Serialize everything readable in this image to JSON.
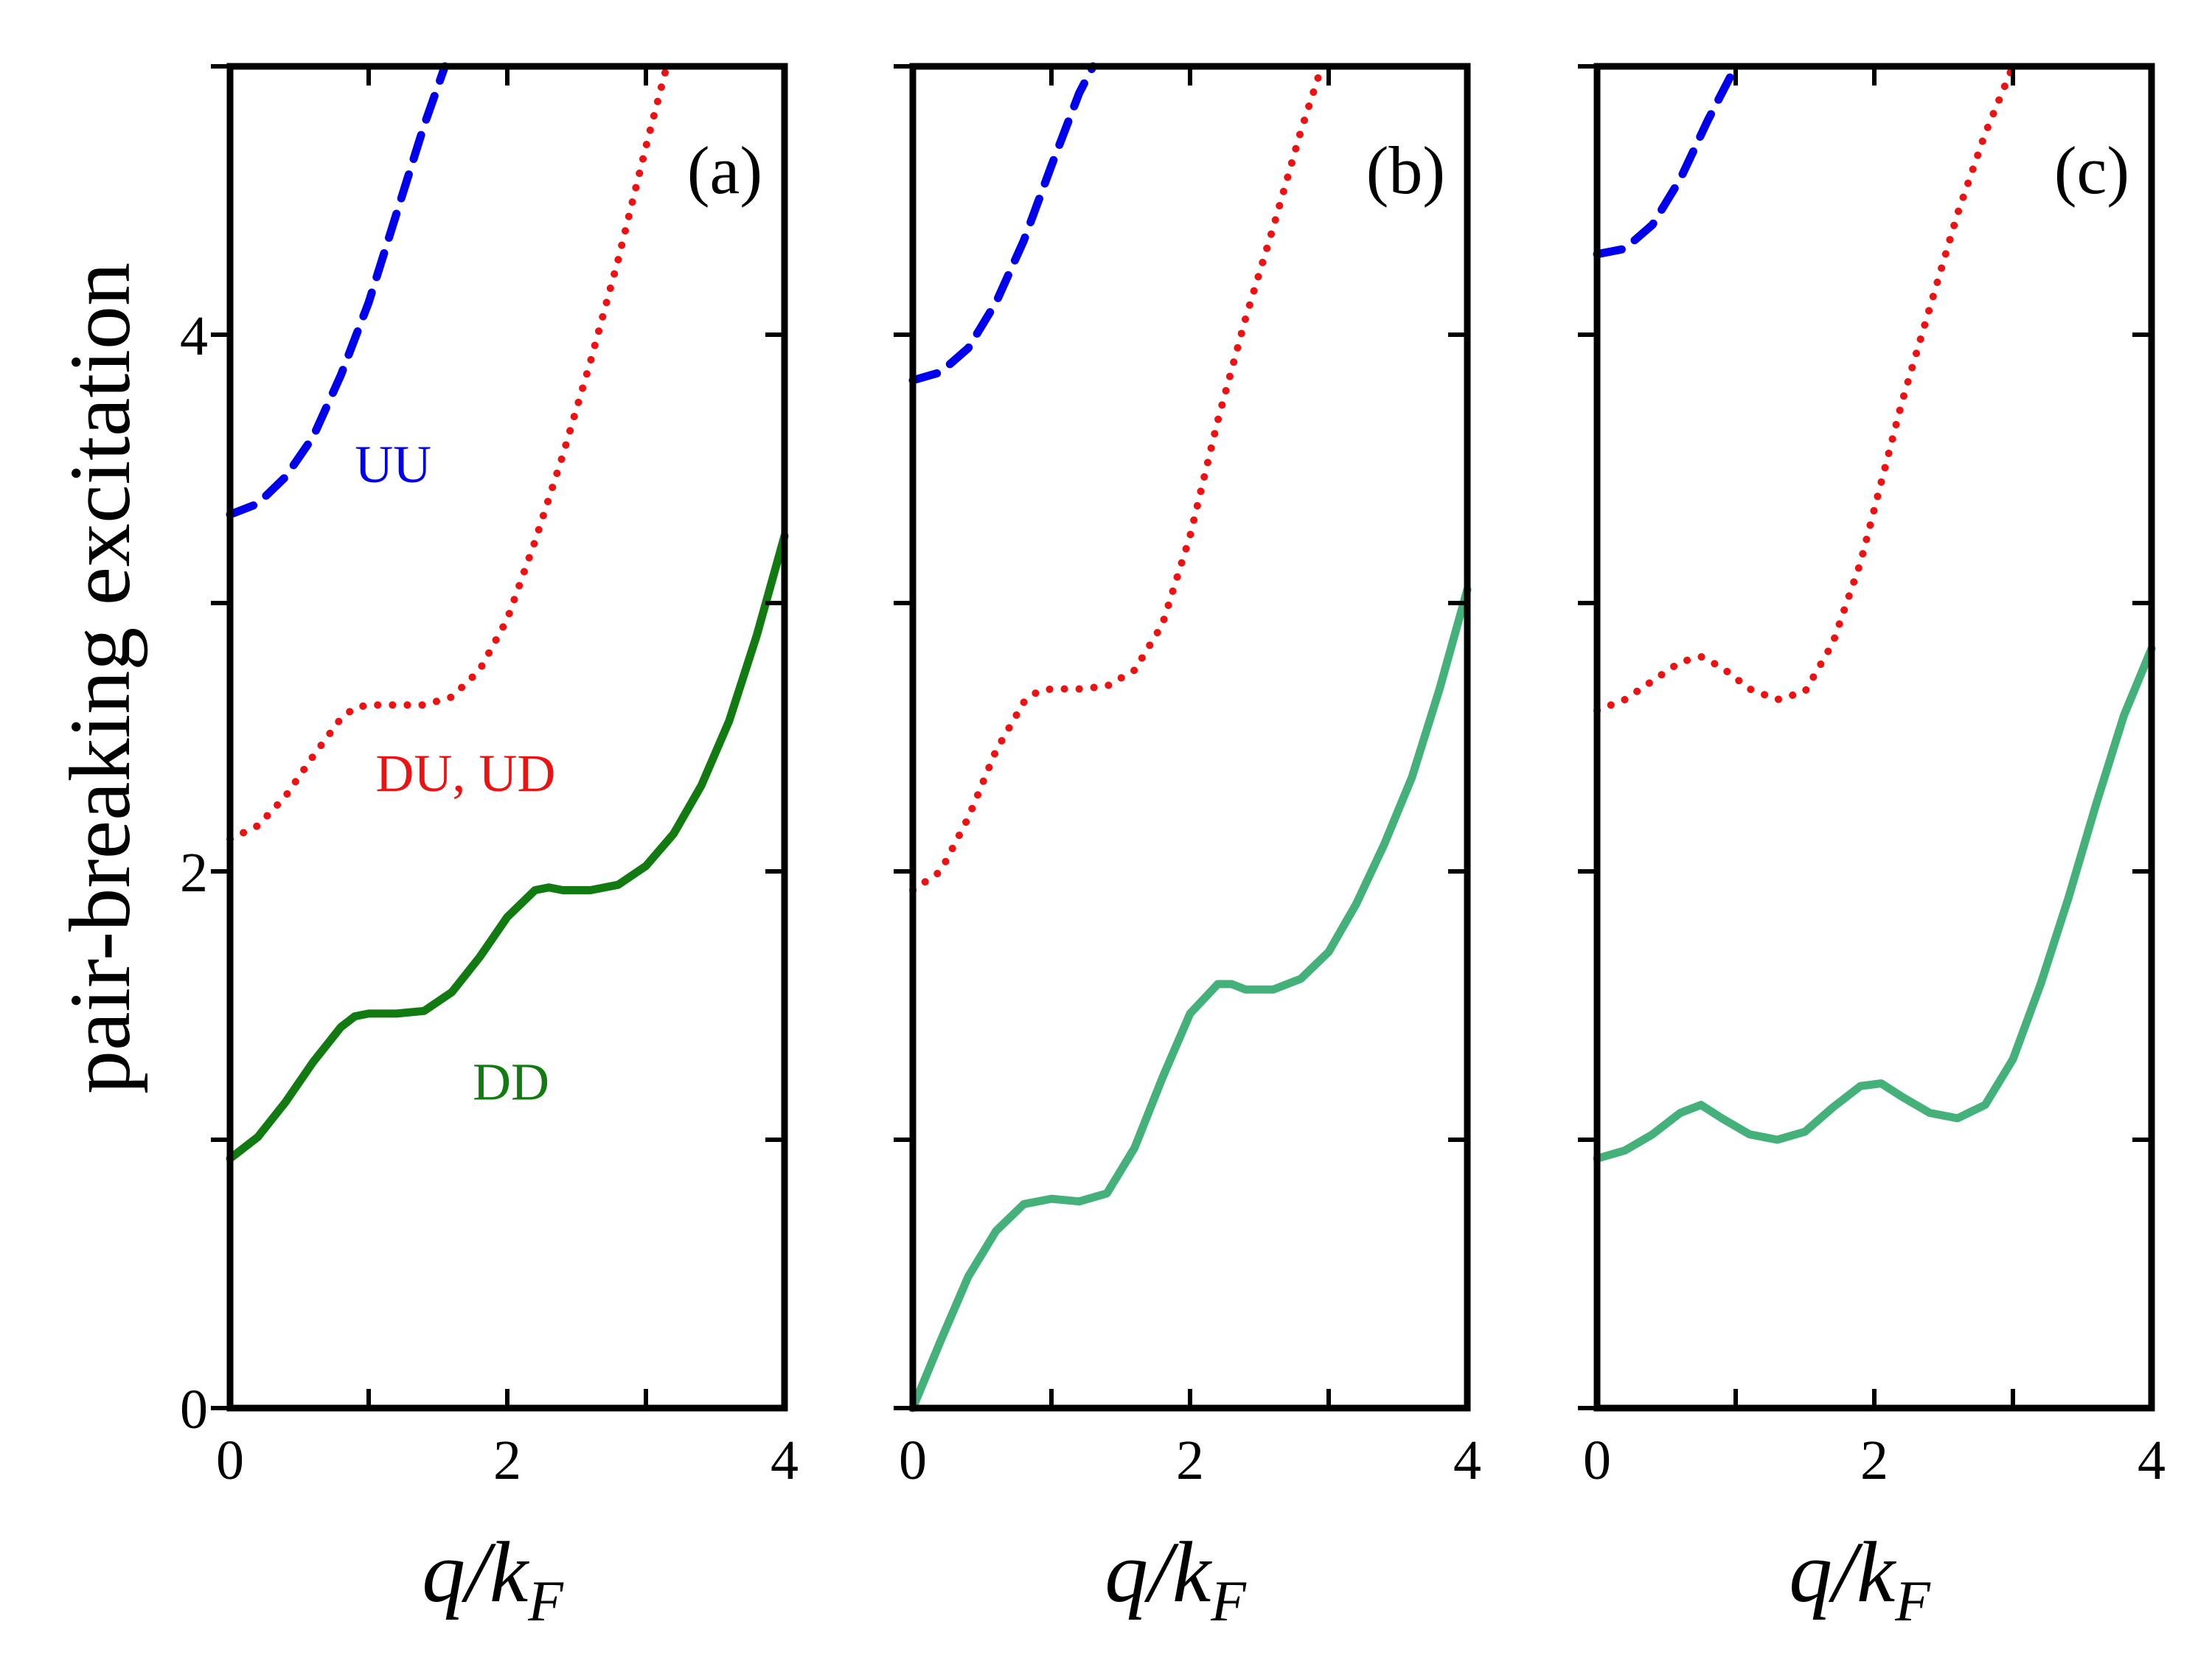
{
  "chart_data": {
    "type": "line",
    "ylabel": "pair-breaking excitation",
    "xlabel": {
      "main": "q/k",
      "sub": "F"
    },
    "xlim": [
      0,
      4
    ],
    "ylim": [
      0,
      5
    ],
    "xticks": [
      0,
      1,
      2,
      3,
      4
    ],
    "yticks": [
      0,
      1,
      2,
      3,
      4,
      5
    ],
    "xticklabels": [
      "0",
      "2",
      "4"
    ],
    "yticklabels": [
      "0",
      "2",
      "4"
    ],
    "colors": {
      "UU": "#0000ee",
      "DU": "#ee1111",
      "DD_a": "#117a11",
      "DD_bc": "#44b07a"
    },
    "panels": [
      {
        "label": "(a)",
        "annotations": [
          {
            "text": "UU",
            "series": "UU",
            "x": 0.9,
            "y": 3.45
          },
          {
            "text": "DU, UD",
            "series": "DU",
            "x": 1.05,
            "y": 2.3
          },
          {
            "text": "DD",
            "series": "DD",
            "x": 1.75,
            "y": 1.15
          }
        ],
        "series": [
          {
            "name": "UU",
            "style": "dashed",
            "x": [
              0,
              0.2,
              0.4,
              0.6,
              0.8,
              1.0,
              1.2,
              1.4,
              1.55
            ],
            "y": [
              3.33,
              3.37,
              3.47,
              3.62,
              3.85,
              4.12,
              4.45,
              4.78,
              5.0
            ]
          },
          {
            "name": "DU, UD",
            "style": "dotted",
            "x": [
              0,
              0.2,
              0.4,
              0.6,
              0.8,
              0.9,
              1.0,
              1.2,
              1.4,
              1.6,
              1.8,
              2.0,
              2.2,
              2.4,
              2.6,
              2.8,
              3.0,
              3.15
            ],
            "y": [
              2.12,
              2.17,
              2.28,
              2.43,
              2.57,
              2.61,
              2.62,
              2.62,
              2.62,
              2.65,
              2.75,
              2.94,
              3.23,
              3.55,
              3.9,
              4.28,
              4.7,
              5.0
            ]
          },
          {
            "name": "DD",
            "style": "solid",
            "color": "DD_a",
            "x": [
              0,
              0.2,
              0.4,
              0.6,
              0.8,
              0.9,
              1.0,
              1.2,
              1.4,
              1.6,
              1.8,
              2.0,
              2.2,
              2.3,
              2.4,
              2.6,
              2.8,
              3.0,
              3.2,
              3.4,
              3.6,
              3.8,
              4.0
            ],
            "y": [
              0.93,
              1.01,
              1.14,
              1.29,
              1.42,
              1.46,
              1.47,
              1.47,
              1.48,
              1.55,
              1.68,
              1.83,
              1.93,
              1.94,
              1.93,
              1.93,
              1.95,
              2.02,
              2.14,
              2.32,
              2.56,
              2.88,
              3.25
            ]
          }
        ]
      },
      {
        "label": "(b)",
        "annotations": [],
        "series": [
          {
            "name": "UU",
            "style": "dashed",
            "x": [
              0,
              0.2,
              0.4,
              0.6,
              0.8,
              1.0,
              1.2,
              1.3
            ],
            "y": [
              3.83,
              3.86,
              3.95,
              4.12,
              4.35,
              4.63,
              4.9,
              5.0
            ]
          },
          {
            "name": "DU, UD",
            "style": "dotted",
            "x": [
              0,
              0.2,
              0.4,
              0.6,
              0.8,
              0.9,
              1.0,
              1.2,
              1.4,
              1.6,
              1.8,
              2.0,
              2.2,
              2.4,
              2.6,
              2.8,
              2.95
            ],
            "y": [
              1.93,
              2.0,
              2.2,
              2.45,
              2.63,
              2.67,
              2.68,
              2.68,
              2.69,
              2.75,
              2.92,
              3.25,
              3.68,
              4.06,
              4.4,
              4.76,
              5.0
            ]
          },
          {
            "name": "DD",
            "style": "solid",
            "color": "DD_bc",
            "x": [
              0,
              0.2,
              0.4,
              0.6,
              0.8,
              1.0,
              1.2,
              1.4,
              1.6,
              1.8,
              2.0,
              2.2,
              2.3,
              2.4,
              2.6,
              2.8,
              3.0,
              3.2,
              3.4,
              3.6,
              3.8,
              4.0
            ],
            "y": [
              0.0,
              0.25,
              0.49,
              0.66,
              0.76,
              0.78,
              0.77,
              0.8,
              0.97,
              1.23,
              1.47,
              1.58,
              1.58,
              1.56,
              1.56,
              1.6,
              1.7,
              1.88,
              2.1,
              2.35,
              2.68,
              3.05
            ]
          }
        ]
      },
      {
        "label": "(c)",
        "annotations": [],
        "series": [
          {
            "name": "UU",
            "style": "dashed",
            "x": [
              0,
              0.2,
              0.4,
              0.6,
              0.8,
              1.0
            ],
            "y": [
              4.3,
              4.32,
              4.41,
              4.58,
              4.8,
              5.0
            ]
          },
          {
            "name": "DU, UD",
            "style": "dotted",
            "x": [
              0,
              0.2,
              0.4,
              0.6,
              0.75,
              0.9,
              1.1,
              1.3,
              1.5,
              1.7,
              1.9,
              2.0,
              2.2,
              2.4,
              2.6,
              2.8,
              3.0
            ],
            "y": [
              2.6,
              2.64,
              2.71,
              2.78,
              2.8,
              2.76,
              2.68,
              2.64,
              2.67,
              2.85,
              3.15,
              3.35,
              3.75,
              4.1,
              4.45,
              4.75,
              5.0
            ]
          },
          {
            "name": "DD",
            "style": "solid",
            "color": "DD_bc",
            "x": [
              0,
              0.2,
              0.4,
              0.6,
              0.75,
              0.9,
              1.1,
              1.3,
              1.5,
              1.7,
              1.9,
              2.05,
              2.2,
              2.4,
              2.6,
              2.8,
              3.0,
              3.2,
              3.4,
              3.6,
              3.8,
              4.0
            ],
            "y": [
              0.93,
              0.96,
              1.02,
              1.1,
              1.13,
              1.08,
              1.02,
              1.0,
              1.03,
              1.12,
              1.2,
              1.21,
              1.16,
              1.1,
              1.08,
              1.13,
              1.3,
              1.58,
              1.9,
              2.25,
              2.58,
              2.83
            ]
          }
        ]
      }
    ]
  }
}
